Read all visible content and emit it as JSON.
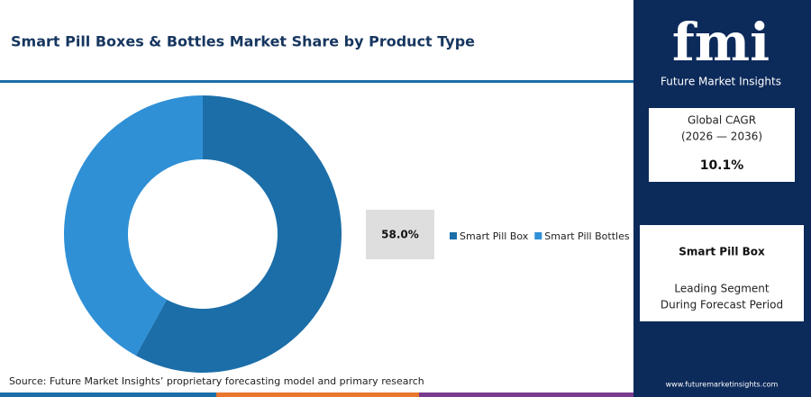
{
  "chart_data": {
    "type": "donut",
    "title": "Smart Pill Boxes & Bottles Market Share by Product Type",
    "categories": [
      "Smart Pill Box",
      "Smart Pill Bottles"
    ],
    "values": [
      58.0,
      42.0
    ],
    "value_labels": [
      "58.0%",
      null
    ],
    "colors": [
      "#1b6ea8",
      "#2f90d6"
    ],
    "source": "Source: Future Market Insights’ proprietary forecasting model and primary research"
  },
  "panel": {
    "brand_logo": "fmi",
    "brand_name": "Future Market Insights",
    "cagr_label": "Global CAGR",
    "cagr_period": "(2026 — 2036)",
    "cagr_value": "10.1%",
    "segment": "Smart Pill Box",
    "segment_desc": [
      "Leading Segment",
      "During Forecast Period"
    ],
    "website": "www.futuremarketinsights.com"
  }
}
